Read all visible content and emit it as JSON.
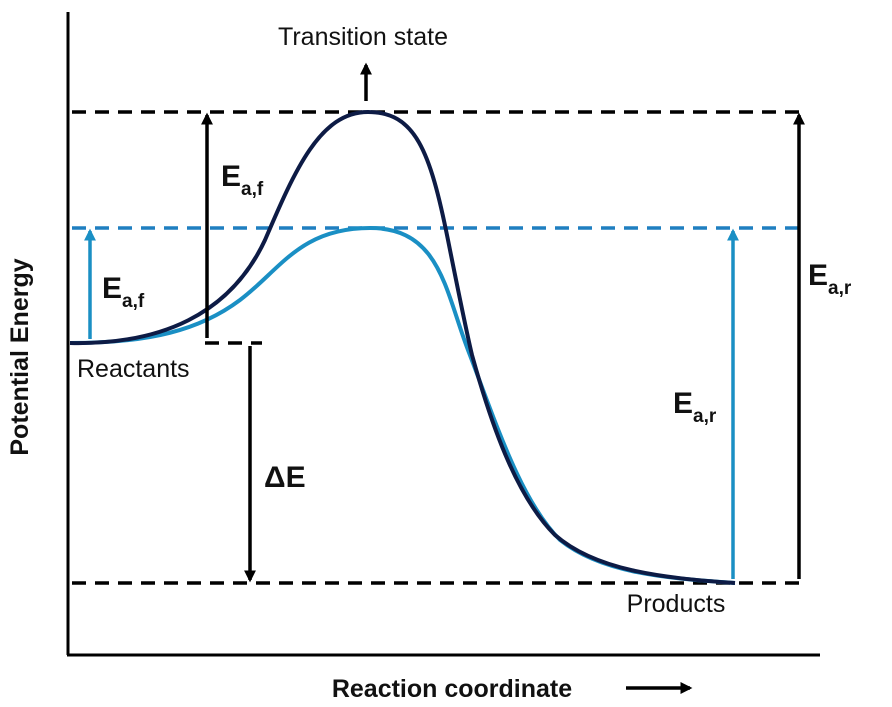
{
  "diagram": {
    "y_axis_title": "Potential Energy",
    "x_axis_title": "Reaction coordinate",
    "transition_state_label": "Transition state",
    "reactants_label": "Reactants",
    "products_label": "Products",
    "delta_e_label": "ΔE",
    "ea_forward": {
      "main": "E",
      "sub": "a,f"
    },
    "ea_reverse": {
      "main": "E",
      "sub": "a,r"
    }
  },
  "colors": {
    "uncatalyzed_curve": "#0d1b45",
    "catalyzed_curve": "#1a8fc4",
    "black_dashes": "#000000",
    "blue_dashes": "#1f7fc0",
    "catalyzed_arrows": "#1a8fc4",
    "axes": "#000000"
  },
  "icons": [
    "up-arrow-icon",
    "right-arrow-icon"
  ]
}
